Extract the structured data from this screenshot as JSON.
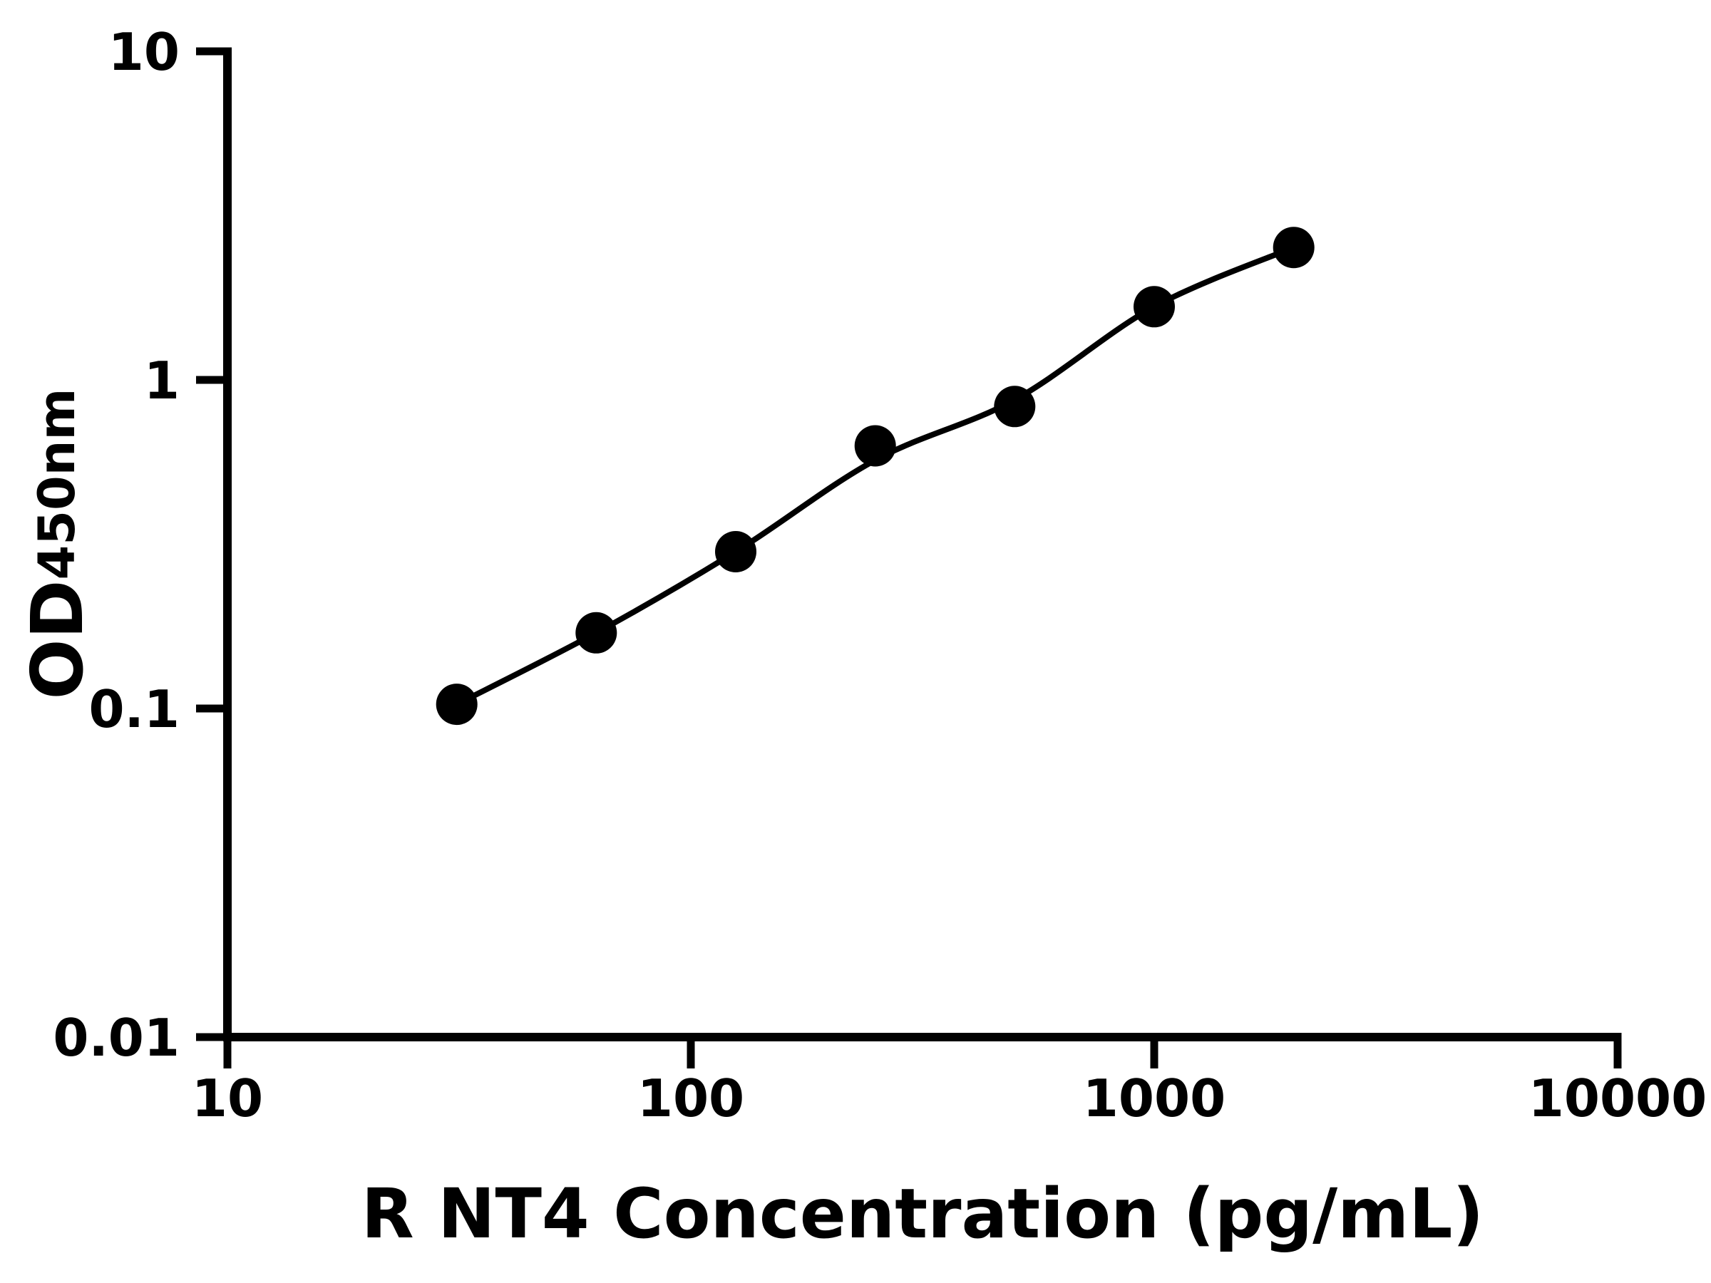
{
  "figure": {
    "background": "#ffffff",
    "ink_color": "#000000"
  },
  "chart_data": {
    "type": "scatter",
    "title": "",
    "xlabel": "R NT4 Concentration (pg/mL)",
    "ylabel_main": "OD",
    "ylabel_sub": "450nm",
    "x_scale": "log",
    "y_scale": "log",
    "xlim": [
      10,
      10000
    ],
    "ylim": [
      0.01,
      10
    ],
    "grid": false,
    "legend_position": "none",
    "x_ticks": [
      {
        "value": 10,
        "label": "10"
      },
      {
        "value": 100,
        "label": "100"
      },
      {
        "value": 1000,
        "label": "1000"
      },
      {
        "value": 10000,
        "label": "10000"
      }
    ],
    "y_ticks": [
      {
        "value": 10,
        "label": "10"
      },
      {
        "value": 1,
        "label": "1"
      },
      {
        "value": 0.1,
        "label": "0.1"
      },
      {
        "value": 0.01,
        "label": "0.01"
      }
    ],
    "series": [
      {
        "name": "standard-points",
        "marker": "filled-circle",
        "color": "#000000",
        "x": [
          31.25,
          62.5,
          125,
          250,
          500,
          1000,
          2000
        ],
        "y": [
          0.103,
          0.17,
          0.3,
          0.63,
          0.83,
          1.67,
          2.53
        ]
      }
    ],
    "fit_curve": {
      "name": "4pl-fit",
      "color": "#000000",
      "x": [
        31.25,
        62.5,
        125,
        250,
        500,
        1000,
        2000
      ],
      "y": [
        0.103,
        0.17,
        0.3,
        0.57,
        0.87,
        1.67,
        2.53
      ]
    }
  }
}
